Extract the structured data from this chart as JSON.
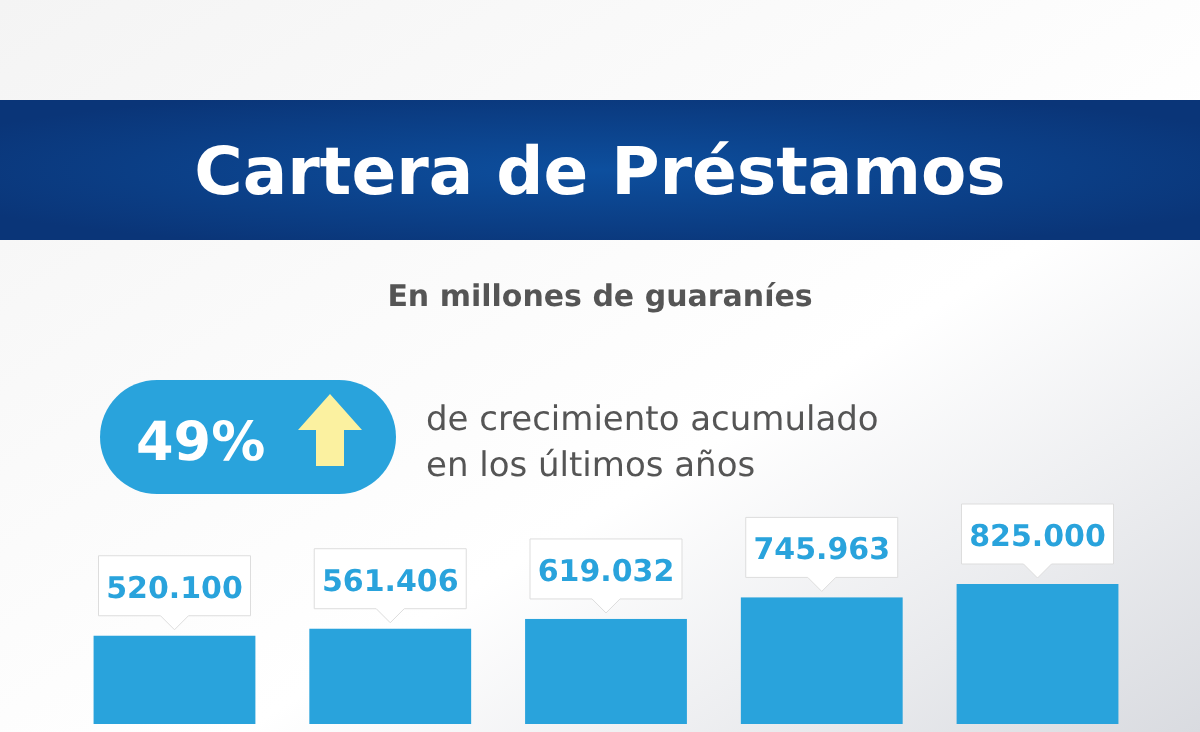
{
  "chart_data": {
    "type": "bar",
    "title": "Cartera de Préstamos",
    "subtitle": "En millones de guaraníes",
    "annotations": [
      "49%",
      "de crecimiento acumulado",
      "en los últimos años"
    ],
    "categories": [
      null,
      null,
      null,
      null,
      null
    ],
    "values": [
      520100,
      561406,
      619032,
      745963,
      825000
    ],
    "value_labels": [
      "520.100",
      "561.406",
      "619.032",
      "745.963",
      "825.000"
    ],
    "color": "#29a3dc"
  }
}
